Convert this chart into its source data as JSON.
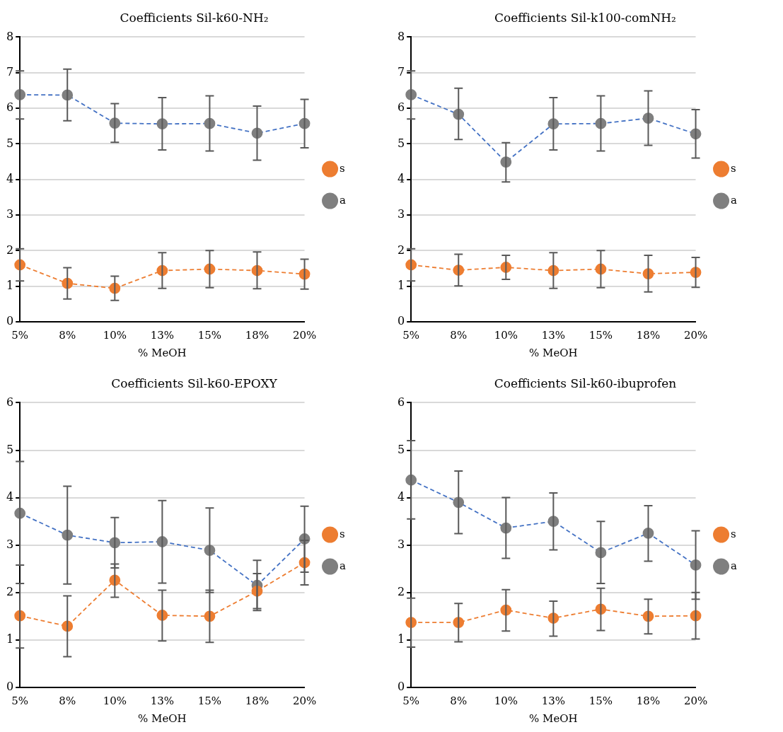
{
  "chart_data": [
    {
      "type": "line",
      "title": "Coefficients Sil-k60-NH₂",
      "xlabel": "% MeOH",
      "categories": [
        "5%",
        "8%",
        "10%",
        "13%",
        "15%",
        "18%",
        "20%"
      ],
      "ylim": [
        0,
        8
      ],
      "yticks": [
        0,
        1,
        2,
        3,
        4,
        5,
        6,
        7,
        8
      ],
      "grid": "y",
      "legend": "right",
      "marker": "circle",
      "line_style": "dashed",
      "series": [
        {
          "name": "s",
          "color": "#ed7d31",
          "values": [
            1.6,
            1.08,
            0.94,
            1.44,
            1.48,
            1.44,
            1.34
          ],
          "errors": [
            [
              1.15,
              2.05
            ],
            [
              0.64,
              1.52
            ],
            [
              0.6,
              1.28
            ],
            [
              0.94,
              1.94
            ],
            [
              0.96,
              2.0
            ],
            [
              0.93,
              1.96
            ],
            [
              0.92,
              1.76
            ]
          ]
        },
        {
          "name": "a",
          "color": "#4472c4",
          "colors": [
            "#7f7f7f",
            "#7f7f7f",
            "#7f7f7f",
            "#7f7f7f",
            "#7f7f7f",
            "#7f7f7f",
            "#7f7f7f"
          ],
          "values": [
            6.38,
            6.37,
            5.58,
            5.56,
            5.57,
            5.3,
            5.57
          ],
          "errors": [
            [
              5.7,
              7.05
            ],
            [
              5.65,
              7.1
            ],
            [
              5.04,
              6.13
            ],
            [
              4.83,
              6.3
            ],
            [
              4.8,
              6.35
            ],
            [
              4.54,
              6.06
            ],
            [
              4.89,
              6.25
            ]
          ]
        }
      ]
    },
    {
      "type": "line",
      "title": "Coefficients Sil-k100-comNH₂",
      "xlabel": "% MeOH",
      "categories": [
        "5%",
        "8%",
        "10%",
        "13%",
        "15%",
        "18%",
        "20%"
      ],
      "ylim": [
        0,
        8
      ],
      "yticks": [
        0,
        1,
        2,
        3,
        4,
        5,
        6,
        7,
        8
      ],
      "grid": "y",
      "legend": "right",
      "marker": "circle",
      "line_style": "dashed",
      "series": [
        {
          "name": "s",
          "color": "#ed7d31",
          "values": [
            1.6,
            1.45,
            1.53,
            1.44,
            1.48,
            1.35,
            1.39
          ],
          "errors": [
            [
              1.15,
              2.05
            ],
            [
              1.01,
              1.9
            ],
            [
              1.19,
              1.87
            ],
            [
              0.94,
              1.94
            ],
            [
              0.96,
              2.0
            ],
            [
              0.84,
              1.87
            ],
            [
              0.97,
              1.81
            ]
          ]
        },
        {
          "name": "a",
          "color": "#4472c4",
          "colors": [
            "#7f7f7f",
            "#7f7f7f",
            "#7f7f7f",
            "#7f7f7f",
            "#7f7f7f",
            "#7f7f7f",
            "#7f7f7f"
          ],
          "values": [
            6.38,
            5.83,
            4.49,
            5.56,
            5.57,
            5.72,
            5.28
          ],
          "errors": [
            [
              5.7,
              7.05
            ],
            [
              5.12,
              6.56
            ],
            [
              3.93,
              5.03
            ],
            [
              4.83,
              6.3
            ],
            [
              4.8,
              6.35
            ],
            [
              4.96,
              6.49
            ],
            [
              4.6,
              5.96
            ]
          ]
        }
      ]
    },
    {
      "type": "line",
      "title": "Coefficients Sil-k60-EPOXY",
      "xlabel": "% MeOH",
      "categories": [
        "5%",
        "8%",
        "10%",
        "13%",
        "15%",
        "18%",
        "20%"
      ],
      "ylim": [
        0,
        6
      ],
      "yticks": [
        0,
        1,
        2,
        3,
        4,
        5,
        6
      ],
      "grid": "y",
      "legend": "right",
      "marker": "circle",
      "line_style": "dashed",
      "series": [
        {
          "name": "s",
          "color": "#ed7d31",
          "values": [
            1.51,
            1.29,
            2.26,
            1.52,
            1.5,
            2.03,
            2.63
          ],
          "errors": [
            [
              0.83,
              2.19
            ],
            [
              0.65,
              1.93
            ],
            [
              1.9,
              2.6
            ],
            [
              0.98,
              2.05
            ],
            [
              0.95,
              2.05
            ],
            [
              1.66,
              2.4
            ],
            [
              2.16,
              3.1
            ]
          ]
        },
        {
          "name": "a",
          "color": "#4472c4",
          "colors": [
            "#7f7f7f",
            "#7f7f7f",
            "#7f7f7f",
            "#7f7f7f",
            "#7f7f7f",
            "#7f7f7f",
            "#7f7f7f"
          ],
          "values": [
            3.67,
            3.21,
            3.05,
            3.07,
            2.89,
            2.15,
            3.13
          ],
          "errors": [
            [
              2.58,
              4.76
            ],
            [
              2.18,
              4.24
            ],
            [
              2.52,
              3.58
            ],
            [
              2.2,
              3.94
            ],
            [
              2.0,
              3.78
            ],
            [
              1.62,
              2.68
            ],
            [
              2.43,
              3.82
            ]
          ]
        }
      ]
    },
    {
      "type": "line",
      "title": "Coefficients Sil-k60-ibuprofen",
      "xlabel": "% MeOH",
      "categories": [
        "5%",
        "8%",
        "10%",
        "13%",
        "15%",
        "18%",
        "20%"
      ],
      "ylim": [
        0,
        6
      ],
      "yticks": [
        0,
        1,
        2,
        3,
        4,
        5,
        6
      ],
      "grid": "y",
      "legend": "right",
      "marker": "circle",
      "line_style": "dashed",
      "series": [
        {
          "name": "s",
          "color": "#ed7d31",
          "values": [
            1.37,
            1.37,
            1.63,
            1.46,
            1.65,
            1.5,
            1.51
          ],
          "errors": [
            [
              0.85,
              1.88
            ],
            [
              0.96,
              1.77
            ],
            [
              1.19,
              2.06
            ],
            [
              1.08,
              1.82
            ],
            [
              1.2,
              2.09
            ],
            [
              1.13,
              1.86
            ],
            [
              1.02,
              2.0
            ]
          ]
        },
        {
          "name": "a",
          "color": "#4472c4",
          "colors": [
            "#7f7f7f",
            "#7f7f7f",
            "#7f7f7f",
            "#7f7f7f",
            "#7f7f7f",
            "#7f7f7f",
            "#7f7f7f"
          ],
          "values": [
            4.37,
            3.9,
            3.36,
            3.5,
            2.84,
            3.25,
            2.58
          ],
          "errors": [
            [
              3.55,
              5.2
            ],
            [
              3.24,
              4.56
            ],
            [
              2.72,
              4.0
            ],
            [
              2.9,
              4.1
            ],
            [
              2.19,
              3.5
            ],
            [
              2.66,
              3.83
            ],
            [
              1.86,
              3.3
            ]
          ]
        }
      ]
    }
  ]
}
